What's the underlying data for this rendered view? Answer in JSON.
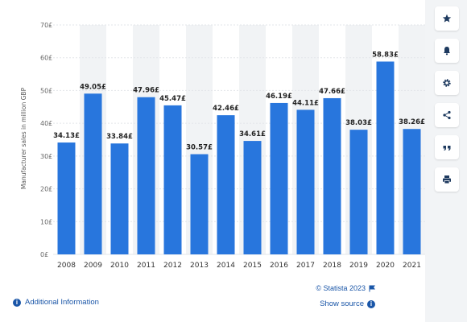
{
  "chart_data": {
    "type": "bar",
    "categories": [
      "2008",
      "2009",
      "2010",
      "2011",
      "2012",
      "2013",
      "2014",
      "2015",
      "2016",
      "2017",
      "2018",
      "2019",
      "2020",
      "2021"
    ],
    "values": [
      34.13,
      49.05,
      33.84,
      47.96,
      45.47,
      30.57,
      42.46,
      34.61,
      46.19,
      44.11,
      47.66,
      38.03,
      58.83,
      38.26
    ],
    "data_labels": [
      "34.13£",
      "49.05£",
      "33.84£",
      "47.96£",
      "45.47£",
      "30.57£",
      "42.46£",
      "34.61£",
      "46.19£",
      "44.11£",
      "47.66£",
      "38.03£",
      "58.83£",
      "38.26£"
    ],
    "ylabel": "Manufacturer sales in million GBP",
    "xlabel": "",
    "title": "",
    "ylim": [
      0,
      70
    ],
    "yticks": [
      0,
      10,
      20,
      30,
      40,
      50,
      60,
      70
    ],
    "ytick_labels": [
      "0£",
      "10£",
      "20£",
      "30£",
      "40£",
      "50£",
      "60£",
      "70£"
    ],
    "grid": true,
    "bar_color": "#2876dd",
    "alt_column_color": "#f1f3f5"
  },
  "toolbar": {
    "buttons": [
      {
        "name": "favorite",
        "icon": "star-icon"
      },
      {
        "name": "notification",
        "icon": "bell-icon"
      },
      {
        "name": "settings",
        "icon": "gear-icon"
      },
      {
        "name": "share",
        "icon": "share-icon"
      },
      {
        "name": "cite",
        "icon": "quote-icon"
      },
      {
        "name": "print",
        "icon": "print-icon"
      }
    ]
  },
  "footer": {
    "additional_info": "Additional Information",
    "credits": "© Statista 2023",
    "show_source": "Show source"
  }
}
